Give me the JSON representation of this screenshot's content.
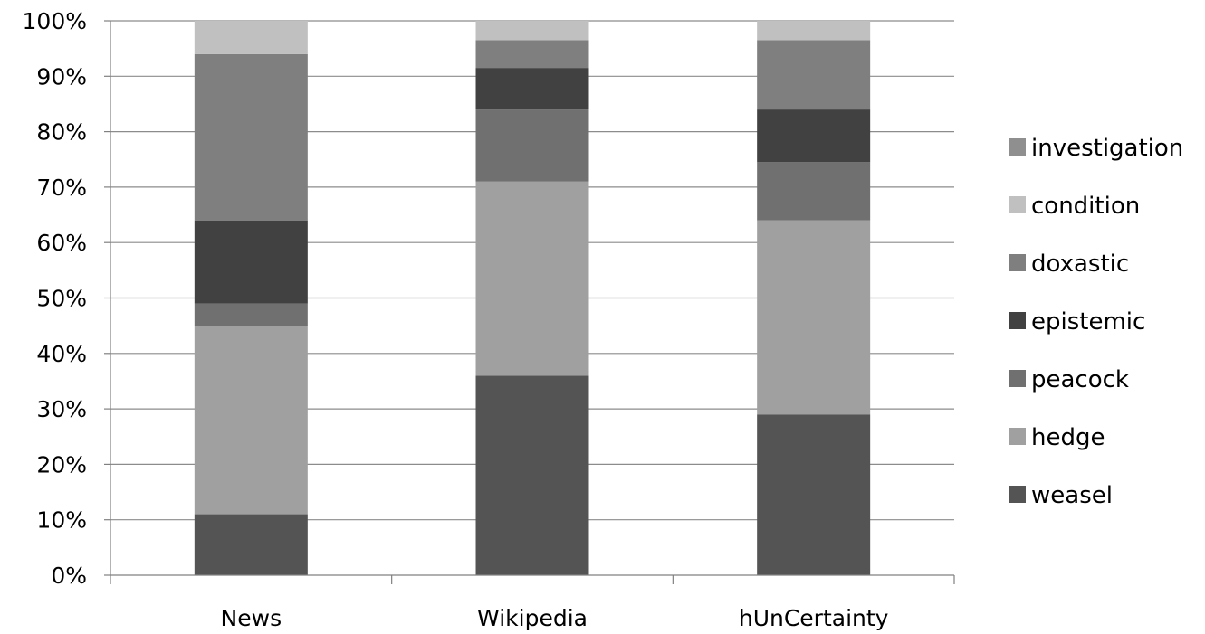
{
  "chart_data": {
    "type": "bar",
    "stacked": true,
    "percent": true,
    "categories": [
      "News",
      "Wikipedia",
      "hUnCertainty"
    ],
    "series": [
      {
        "name": "weasel",
        "color": "#545454",
        "values": [
          11,
          36,
          29
        ]
      },
      {
        "name": "hedge",
        "color": "#a0a0a0",
        "values": [
          34,
          35,
          35
        ]
      },
      {
        "name": "peacock",
        "color": "#707070",
        "values": [
          4,
          13,
          10.5
        ]
      },
      {
        "name": "epistemic",
        "color": "#414141",
        "values": [
          15,
          7.5,
          9.5
        ]
      },
      {
        "name": "doxastic",
        "color": "#7f7f7f",
        "values": [
          30,
          5,
          12.5
        ]
      },
      {
        "name": "condition",
        "color": "#c0c0c0",
        "values": [
          6,
          3.5,
          3.5
        ]
      },
      {
        "name": "investigation",
        "color": "#8f8f8f",
        "values": [
          0,
          0,
          0
        ]
      }
    ],
    "ylim": [
      0,
      100
    ],
    "yticks": [
      "0%",
      "10%",
      "20%",
      "30%",
      "40%",
      "50%",
      "60%",
      "70%",
      "80%",
      "90%",
      "100%"
    ],
    "grid": true,
    "legend": "right",
    "title": "",
    "xlabel": "",
    "ylabel": ""
  }
}
